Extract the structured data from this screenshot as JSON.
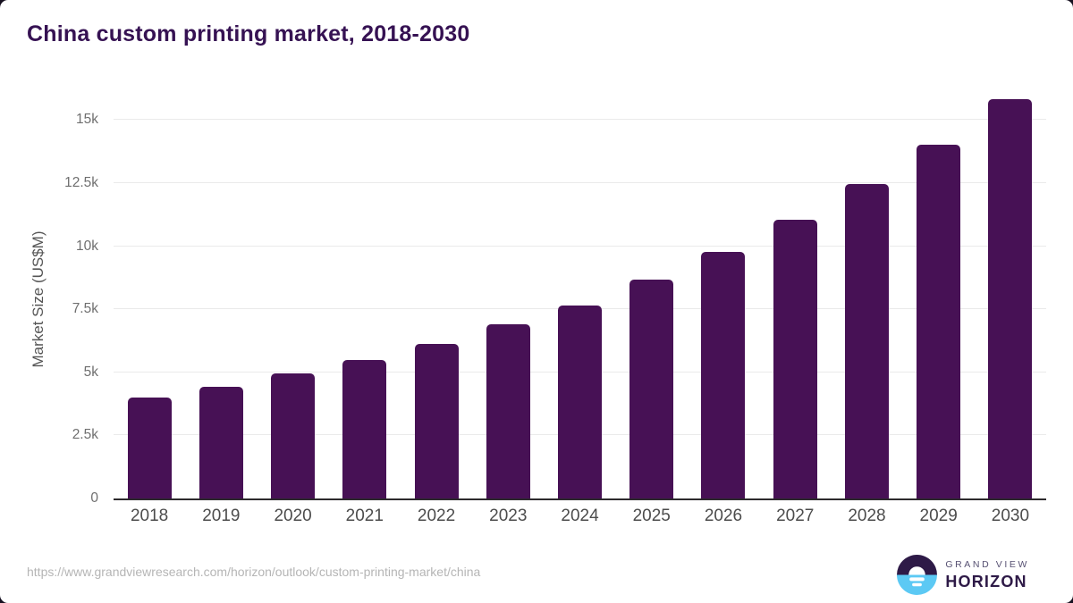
{
  "header": {
    "title": "China custom printing market, 2018-2030"
  },
  "colors": {
    "bar": "#471155",
    "title": "#361253",
    "gridline": "#eaeaea",
    "axis_line": "#2d2a2d",
    "y_tick_text": "#6f6f6f",
    "x_tick_text": "#4c4c4c",
    "y_axis_title_text": "#555555",
    "source_url_text": "#b5b5b5",
    "logo_dark_purple": "#2e1a47",
    "logo_light_blue": "#5cc9f4",
    "logo_gray_text": "#575173",
    "card_background": "#ffffff"
  },
  "chart_data": {
    "type": "bar",
    "title": "China custom printing market, 2018-2030",
    "xlabel": "",
    "ylabel": "Market Size (US$M)",
    "categories": [
      "2018",
      "2019",
      "2020",
      "2021",
      "2022",
      "2023",
      "2024",
      "2025",
      "2026",
      "2027",
      "2028",
      "2029",
      "2030"
    ],
    "values": [
      3990,
      4420,
      4950,
      5500,
      6120,
      6900,
      7650,
      8670,
      9780,
      11050,
      12470,
      14020,
      15830
    ],
    "ylim": [
      0,
      16000
    ],
    "yticks": [
      {
        "value": 0,
        "label": "0"
      },
      {
        "value": 2500,
        "label": "2.5k"
      },
      {
        "value": 5000,
        "label": "5k"
      },
      {
        "value": 7500,
        "label": "7.5k"
      },
      {
        "value": 10000,
        "label": "10k"
      },
      {
        "value": 12500,
        "label": "12.5k"
      },
      {
        "value": 15000,
        "label": "15k"
      }
    ],
    "grid": true,
    "legend": false,
    "bar_corner_radius": "rounded-top"
  },
  "footer": {
    "source_url": "https://www.grandviewresearch.com/horizon/outlook/custom-printing-market/china",
    "logo": {
      "icon": "horizon-sunrise-icon",
      "brand_top": "GRAND VIEW",
      "brand_bottom": "HORIZON"
    }
  }
}
